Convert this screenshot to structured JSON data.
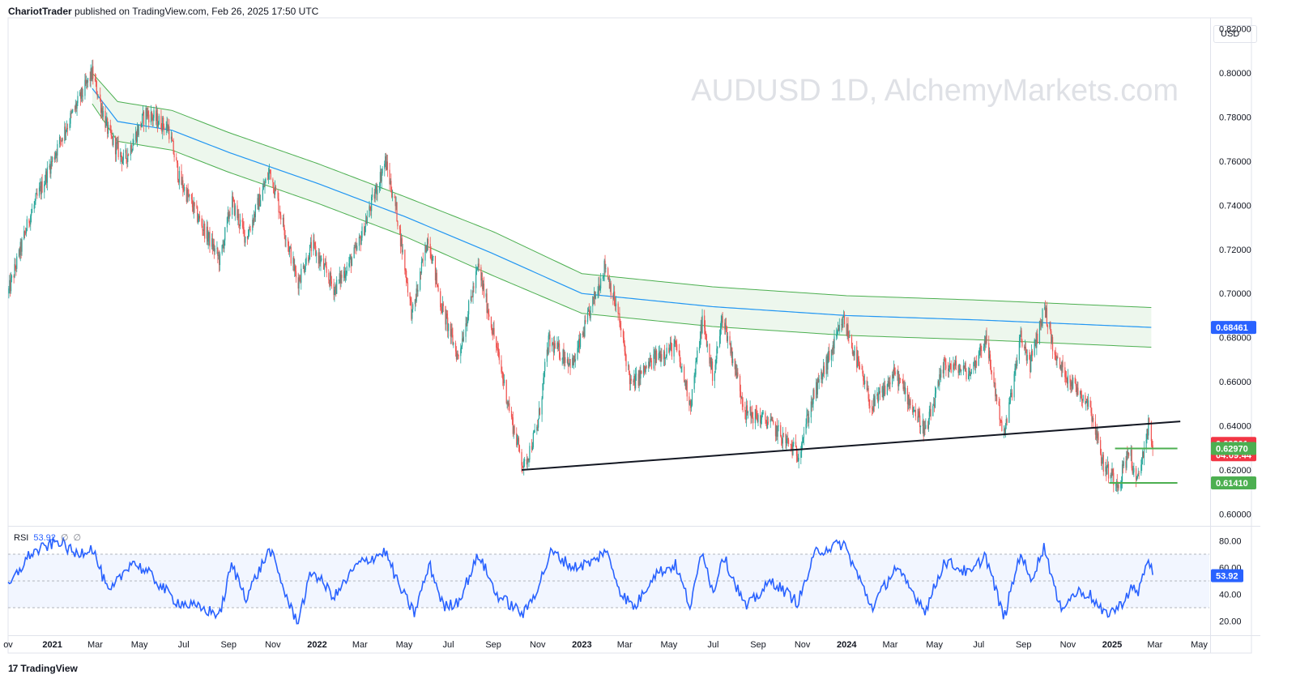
{
  "header": {
    "author": "ChariotTrader",
    "published_text": "published on TradingView.com, Feb 26, 2025 17:50 UTC"
  },
  "watermark": "AUDUSD 1D, AlchemyMarkets.com",
  "currency": "USD",
  "footer": {
    "logo": "17",
    "brand": "TradingView"
  },
  "colors": {
    "up": "#26a69a",
    "down": "#ef5350",
    "ma": "#2196f3",
    "band": "#4caf50",
    "band_fill": "#e8f5e9",
    "rsi": "#2962ff",
    "trendline": "#131722",
    "tag_blue": "#2962ff",
    "tag_red": "#f23645",
    "tag_green": "#4caf50"
  },
  "chart_data": {
    "type": "candlestick",
    "symbol": "AUDUSD",
    "timeframe": "1D",
    "price_axis": {
      "ylim": [
        0.595,
        0.825
      ],
      "ticks": [
        "0.82000",
        "0.80000",
        "0.78000",
        "0.76000",
        "0.74000",
        "0.72000",
        "0.70000",
        "0.68000",
        "0.66000",
        "0.64000",
        "0.62000",
        "0.60000"
      ]
    },
    "time_axis": {
      "range": [
        "2020-11-01",
        "2025-05-15"
      ],
      "labels": [
        {
          "text": "ov",
          "date": "2020-11-01",
          "bold": false
        },
        {
          "text": "2021",
          "date": "2021-01-01",
          "bold": true
        },
        {
          "text": "Mar",
          "date": "2021-03-01",
          "bold": false
        },
        {
          "text": "May",
          "date": "2021-05-01",
          "bold": false
        },
        {
          "text": "Jul",
          "date": "2021-07-01",
          "bold": false
        },
        {
          "text": "Sep",
          "date": "2021-09-01",
          "bold": false
        },
        {
          "text": "Nov",
          "date": "2021-11-01",
          "bold": false
        },
        {
          "text": "2022",
          "date": "2022-01-01",
          "bold": true
        },
        {
          "text": "Mar",
          "date": "2022-03-01",
          "bold": false
        },
        {
          "text": "May",
          "date": "2022-05-01",
          "bold": false
        },
        {
          "text": "Jul",
          "date": "2022-07-01",
          "bold": false
        },
        {
          "text": "Sep",
          "date": "2022-09-01",
          "bold": false
        },
        {
          "text": "Nov",
          "date": "2022-11-01",
          "bold": false
        },
        {
          "text": "2023",
          "date": "2023-01-01",
          "bold": true
        },
        {
          "text": "Mar",
          "date": "2023-03-01",
          "bold": false
        },
        {
          "text": "May",
          "date": "2023-05-01",
          "bold": false
        },
        {
          "text": "Jul",
          "date": "2023-07-01",
          "bold": false
        },
        {
          "text": "Sep",
          "date": "2023-09-01",
          "bold": false
        },
        {
          "text": "Nov",
          "date": "2023-11-01",
          "bold": false
        },
        {
          "text": "2024",
          "date": "2024-01-01",
          "bold": true
        },
        {
          "text": "Mar",
          "date": "2024-03-01",
          "bold": false
        },
        {
          "text": "May",
          "date": "2024-05-01",
          "bold": false
        },
        {
          "text": "Jul",
          "date": "2024-07-01",
          "bold": false
        },
        {
          "text": "Sep",
          "date": "2024-09-01",
          "bold": false
        },
        {
          "text": "Nov",
          "date": "2024-11-01",
          "bold": false
        },
        {
          "text": "2025",
          "date": "2025-01-01",
          "bold": true
        },
        {
          "text": "Mar",
          "date": "2025-03-01",
          "bold": false
        },
        {
          "text": "May",
          "date": "2025-05-01",
          "bold": false
        }
      ]
    },
    "price_path": [
      [
        "2020-11-01",
        0.7
      ],
      [
        "2020-12-01",
        0.735
      ],
      [
        "2021-01-15",
        0.772
      ],
      [
        "2021-02-25",
        0.8
      ],
      [
        "2021-03-20",
        0.772
      ],
      [
        "2021-04-10",
        0.76
      ],
      [
        "2021-05-10",
        0.782
      ],
      [
        "2021-06-10",
        0.775
      ],
      [
        "2021-06-25",
        0.752
      ],
      [
        "2021-07-20",
        0.735
      ],
      [
        "2021-08-20",
        0.715
      ],
      [
        "2021-09-05",
        0.742
      ],
      [
        "2021-09-25",
        0.725
      ],
      [
        "2021-10-28",
        0.756
      ],
      [
        "2021-11-20",
        0.725
      ],
      [
        "2021-12-05",
        0.705
      ],
      [
        "2021-12-25",
        0.722
      ],
      [
        "2022-01-25",
        0.702
      ],
      [
        "2022-02-25",
        0.72
      ],
      [
        "2022-04-05",
        0.76
      ],
      [
        "2022-04-20",
        0.738
      ],
      [
        "2022-05-12",
        0.69
      ],
      [
        "2022-06-03",
        0.726
      ],
      [
        "2022-06-20",
        0.696
      ],
      [
        "2022-07-14",
        0.671
      ],
      [
        "2022-08-11",
        0.712
      ],
      [
        "2022-09-01",
        0.682
      ],
      [
        "2022-09-28",
        0.64
      ],
      [
        "2022-10-13",
        0.621
      ],
      [
        "2022-11-01",
        0.64
      ],
      [
        "2022-11-16",
        0.678
      ],
      [
        "2022-12-20",
        0.668
      ],
      [
        "2023-02-02",
        0.713
      ],
      [
        "2023-02-20",
        0.69
      ],
      [
        "2023-03-10",
        0.658
      ],
      [
        "2023-04-15",
        0.672
      ],
      [
        "2023-05-10",
        0.676
      ],
      [
        "2023-05-31",
        0.65
      ],
      [
        "2023-06-16",
        0.688
      ],
      [
        "2023-07-01",
        0.662
      ],
      [
        "2023-07-14",
        0.69
      ],
      [
        "2023-08-15",
        0.646
      ],
      [
        "2023-09-15",
        0.642
      ],
      [
        "2023-10-26",
        0.627
      ],
      [
        "2023-11-15",
        0.652
      ],
      [
        "2023-12-28",
        0.688
      ],
      [
        "2024-02-05",
        0.648
      ],
      [
        "2024-03-08",
        0.664
      ],
      [
        "2024-04-19",
        0.637
      ],
      [
        "2024-05-15",
        0.668
      ],
      [
        "2024-06-20",
        0.664
      ],
      [
        "2024-07-10",
        0.68
      ],
      [
        "2024-08-05",
        0.635
      ],
      [
        "2024-08-28",
        0.68
      ],
      [
        "2024-09-10",
        0.668
      ],
      [
        "2024-09-30",
        0.694
      ],
      [
        "2024-10-15",
        0.67
      ],
      [
        "2024-11-10",
        0.658
      ],
      [
        "2024-12-01",
        0.65
      ],
      [
        "2024-12-20",
        0.622
      ],
      [
        "2025-01-10",
        0.614
      ],
      [
        "2025-01-25",
        0.63
      ],
      [
        "2025-02-03",
        0.612
      ],
      [
        "2025-02-20",
        0.64
      ],
      [
        "2025-02-26",
        0.632
      ]
    ],
    "moving_average": {
      "name": "",
      "points": [
        [
          "2021-02-25",
          0.793
        ],
        [
          "2021-04-01",
          0.778
        ],
        [
          "2021-06-15",
          0.774
        ],
        [
          "2021-09-01",
          0.764
        ],
        [
          "2022-01-01",
          0.75
        ],
        [
          "2022-05-01",
          0.735
        ],
        [
          "2022-09-01",
          0.718
        ],
        [
          "2023-01-01",
          0.7
        ],
        [
          "2023-07-01",
          0.694
        ],
        [
          "2024-01-01",
          0.69
        ],
        [
          "2024-07-01",
          0.688
        ],
        [
          "2025-02-26",
          0.6846
        ]
      ],
      "band_upper": [
        [
          "2021-02-25",
          0.8
        ],
        [
          "2021-04-01",
          0.787
        ],
        [
          "2021-06-15",
          0.783
        ],
        [
          "2021-09-01",
          0.773
        ],
        [
          "2022-01-01",
          0.759
        ],
        [
          "2022-05-01",
          0.744
        ],
        [
          "2022-09-01",
          0.728
        ],
        [
          "2023-01-01",
          0.709
        ],
        [
          "2023-07-01",
          0.703
        ],
        [
          "2024-01-01",
          0.699
        ],
        [
          "2024-07-01",
          0.697
        ],
        [
          "2025-02-26",
          0.6936
        ]
      ],
      "band_lower": [
        [
          "2021-02-25",
          0.786
        ],
        [
          "2021-04-01",
          0.769
        ],
        [
          "2021-06-15",
          0.765
        ],
        [
          "2021-09-01",
          0.755
        ],
        [
          "2022-01-01",
          0.741
        ],
        [
          "2022-05-01",
          0.726
        ],
        [
          "2022-09-01",
          0.708
        ],
        [
          "2023-01-01",
          0.691
        ],
        [
          "2023-07-01",
          0.685
        ],
        [
          "2024-01-01",
          0.681
        ],
        [
          "2024-07-01",
          0.679
        ],
        [
          "2025-02-26",
          0.6756
        ]
      ]
    },
    "trendline": {
      "start": [
        "2022-10-10",
        0.62
      ],
      "end": [
        "2025-04-05",
        0.642
      ]
    },
    "horizontal_levels": [
      {
        "start": "2025-01-05",
        "end": "2025-04-01",
        "price": 0.6297
      },
      {
        "start": "2024-12-28",
        "end": "2025-04-01",
        "price": 0.6141
      }
    ],
    "price_tags": [
      {
        "label": "0.68461",
        "price": 0.68461,
        "color": "#2962ff"
      },
      {
        "label": "0.63201",
        "price": 0.63201,
        "color": "#f23645",
        "sub": "04:09:44"
      },
      {
        "label": "0.62970",
        "price": 0.6297,
        "color": "#4caf50"
      },
      {
        "label": "0.61410",
        "price": 0.6141,
        "color": "#4caf50"
      }
    ],
    "rsi": {
      "title": "RSI",
      "value": "53.92",
      "extra": [
        "∅",
        "∅"
      ],
      "ylim": [
        10,
        90
      ],
      "ticks": [
        "80.00",
        "60.00",
        "40.00",
        "20.00"
      ],
      "upper_band": 70,
      "lower_band": 30,
      "mid": 50,
      "current_tag": "53.92",
      "path": [
        [
          "2020-11-01",
          45
        ],
        [
          "2020-12-01",
          70
        ],
        [
          "2021-01-10",
          80
        ],
        [
          "2021-02-01",
          70
        ],
        [
          "2021-02-25",
          75
        ],
        [
          "2021-03-20",
          40
        ],
        [
          "2021-04-20",
          65
        ],
        [
          "2021-05-15",
          55
        ],
        [
          "2021-06-20",
          35
        ],
        [
          "2021-07-20",
          30
        ],
        [
          "2021-08-20",
          25
        ],
        [
          "2021-09-05",
          62
        ],
        [
          "2021-09-25",
          38
        ],
        [
          "2021-10-28",
          74
        ],
        [
          "2021-11-25",
          30
        ],
        [
          "2021-12-05",
          20
        ],
        [
          "2021-12-25",
          58
        ],
        [
          "2022-01-25",
          38
        ],
        [
          "2022-02-25",
          62
        ],
        [
          "2022-04-05",
          72
        ],
        [
          "2022-04-25",
          45
        ],
        [
          "2022-05-15",
          26
        ],
        [
          "2022-06-05",
          62
        ],
        [
          "2022-06-25",
          30
        ],
        [
          "2022-07-15",
          35
        ],
        [
          "2022-08-12",
          70
        ],
        [
          "2022-09-05",
          40
        ],
        [
          "2022-10-13",
          25
        ],
        [
          "2022-11-01",
          45
        ],
        [
          "2022-11-20",
          72
        ],
        [
          "2022-12-20",
          60
        ],
        [
          "2023-01-20",
          65
        ],
        [
          "2023-02-02",
          74
        ],
        [
          "2023-02-25",
          40
        ],
        [
          "2023-03-15",
          30
        ],
        [
          "2023-04-10",
          55
        ],
        [
          "2023-05-10",
          62
        ],
        [
          "2023-05-31",
          30
        ],
        [
          "2023-06-16",
          75
        ],
        [
          "2023-07-01",
          40
        ],
        [
          "2023-07-14",
          70
        ],
        [
          "2023-08-15",
          30
        ],
        [
          "2023-09-20",
          50
        ],
        [
          "2023-10-26",
          34
        ],
        [
          "2023-11-20",
          72
        ],
        [
          "2023-12-28",
          78
        ],
        [
          "2024-02-05",
          30
        ],
        [
          "2024-03-08",
          60
        ],
        [
          "2024-04-19",
          28
        ],
        [
          "2024-05-15",
          65
        ],
        [
          "2024-06-20",
          55
        ],
        [
          "2024-07-10",
          70
        ],
        [
          "2024-08-05",
          22
        ],
        [
          "2024-08-28",
          72
        ],
        [
          "2024-09-10",
          50
        ],
        [
          "2024-09-30",
          76
        ],
        [
          "2024-10-20",
          30
        ],
        [
          "2024-11-15",
          42
        ],
        [
          "2024-12-01",
          40
        ],
        [
          "2024-12-20",
          25
        ],
        [
          "2025-01-10",
          30
        ],
        [
          "2025-01-28",
          45
        ],
        [
          "2025-02-05",
          40
        ],
        [
          "2025-02-20",
          68
        ],
        [
          "2025-02-26",
          54
        ]
      ]
    }
  }
}
